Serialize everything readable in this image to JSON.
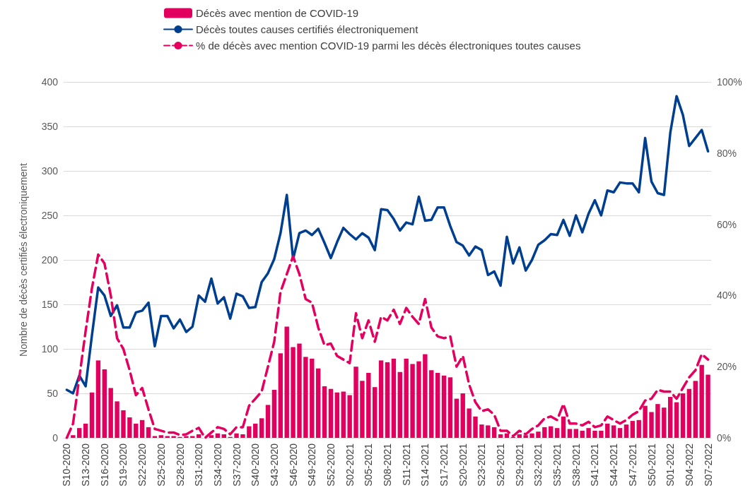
{
  "chart_data": {
    "type": "bar",
    "ylabel": "Nombre de décès certifiés électroniquement",
    "categories": [
      "S10-2020",
      null,
      null,
      "S13-2020",
      null,
      null,
      "S16-2020",
      null,
      null,
      "S19-2020",
      null,
      null,
      "S22-2020",
      null,
      null,
      "S25-2020",
      null,
      null,
      "S28-2020",
      null,
      null,
      "S31-2020",
      null,
      null,
      "S34-2020",
      null,
      null,
      "S37-2020",
      null,
      null,
      "S40-2020",
      null,
      null,
      "S43-2020",
      null,
      null,
      "S46-2020",
      null,
      null,
      "S49-2020",
      null,
      null,
      "S52-2020",
      null,
      null,
      "S02-2021",
      null,
      null,
      "S05-2021",
      null,
      null,
      "S08-2021",
      null,
      null,
      "S11-2021",
      null,
      null,
      "S14-2021",
      null,
      null,
      "S17-2021",
      null,
      null,
      "S20-2021",
      null,
      null,
      "S23-2021",
      null,
      null,
      "S26-2021",
      null,
      null,
      "S29-2021",
      null,
      null,
      "S32-2021",
      null,
      null,
      "S35-2021",
      null,
      null,
      "S38-2021",
      null,
      null,
      "S41-2021",
      null,
      null,
      "S44-2021",
      null,
      null,
      "S47-2021",
      null,
      null,
      "S50-2021",
      null,
      null,
      "S01-2022",
      null,
      null,
      "S04-2022",
      null,
      null,
      "S07-2022"
    ],
    "series": [
      {
        "name": "Décès avec mention de COVID-19",
        "color": "#e2005e",
        "values": [
          null,
          3,
          11,
          16,
          51,
          87,
          77,
          56,
          41,
          31,
          23,
          16,
          20,
          12,
          2,
          3,
          2,
          2,
          1,
          2,
          2,
          4,
          0,
          3,
          5,
          4,
          1,
          5,
          4,
          13,
          16,
          22,
          37,
          54,
          95,
          125,
          102,
          106,
          91,
          89,
          78,
          58,
          55,
          51,
          52,
          48,
          80,
          64,
          73,
          57,
          87,
          85,
          89,
          74,
          89,
          83,
          86,
          94,
          76,
          73,
          70,
          68,
          44,
          50,
          33,
          24,
          15,
          14,
          12,
          4,
          5,
          1,
          4,
          3,
          5,
          7,
          12,
          13,
          11,
          24,
          10,
          10,
          8,
          11,
          8,
          8,
          16,
          14,
          11,
          15,
          19,
          20,
          36,
          29,
          38,
          34,
          46,
          40,
          50,
          55,
          64,
          82,
          71
        ]
      },
      {
        "name": "Décès toutes causes certifiés électroniquement",
        "type": "line",
        "color": "#003f8f",
        "line_style": "solid",
        "values": [
          54,
          50,
          70,
          58,
          115,
          169,
          160,
          137,
          149,
          124,
          124,
          141,
          143,
          152,
          103,
          137,
          137,
          123,
          133,
          119,
          125,
          160,
          153,
          179,
          151,
          158,
          134,
          162,
          159,
          146,
          147,
          175,
          185,
          201,
          230,
          273,
          201,
          230,
          233,
          228,
          235,
          219,
          202,
          220,
          236,
          229,
          223,
          230,
          225,
          211,
          257,
          256,
          246,
          233,
          242,
          240,
          271,
          244,
          245,
          259,
          259,
          238,
          220,
          216,
          205,
          215,
          211,
          183,
          187,
          171,
          226,
          196,
          214,
          188,
          200,
          217,
          222,
          229,
          228,
          245,
          227,
          250,
          231,
          252,
          267,
          250,
          278,
          276,
          287,
          286,
          286,
          276,
          337,
          288,
          275,
          273,
          343,
          384,
          363,
          328,
          337,
          346,
          322
        ]
      },
      {
        "name": "% de décès avec mention COVID-19 parmi les décès électroniques toutes causes",
        "type": "line",
        "axis": "y2",
        "color": "#e5005f",
        "line_style": "dashed",
        "values": [
          0,
          4,
          17,
          30,
          42,
          51.5,
          49,
          40,
          28,
          25,
          19,
          12,
          14,
          8,
          2.5,
          2,
          1.5,
          1.5,
          0.8,
          1,
          2,
          2.8,
          0,
          1.5,
          3,
          2.5,
          1,
          3,
          3,
          9,
          11,
          13,
          20,
          27,
          41,
          46,
          51,
          46,
          39,
          38,
          31,
          26,
          26.5,
          23,
          22,
          21,
          35,
          28,
          33,
          27,
          34,
          33,
          36,
          32,
          36.5,
          34,
          32,
          39,
          31,
          28.5,
          28,
          28.5,
          20,
          23,
          15,
          10,
          7.5,
          8,
          6.5,
          2,
          2,
          0.5,
          2,
          1,
          2.5,
          3.5,
          5.5,
          6,
          5,
          9.5,
          4,
          4,
          3.5,
          4.5,
          3,
          3.5,
          6,
          5,
          4,
          5,
          6.5,
          7.5,
          10.5,
          11,
          13.5,
          13,
          13,
          11,
          14,
          17,
          19,
          23.5,
          22
        ]
      }
    ],
    "ylim": [
      0,
      400
    ],
    "yticks": [
      0,
      50,
      100,
      150,
      200,
      250,
      300,
      350,
      400
    ],
    "y2lim": [
      0,
      100
    ],
    "y2ticks": [
      {
        "value": 0,
        "label": "0%"
      },
      {
        "value": 20,
        "label": "20%"
      },
      {
        "value": 40,
        "label": "40%"
      },
      {
        "value": 60,
        "label": "60%"
      },
      {
        "value": 80,
        "label": "80%"
      },
      {
        "value": 100,
        "label": "100%"
      }
    ],
    "grid": "y",
    "legend": "top",
    "marker": "none"
  }
}
